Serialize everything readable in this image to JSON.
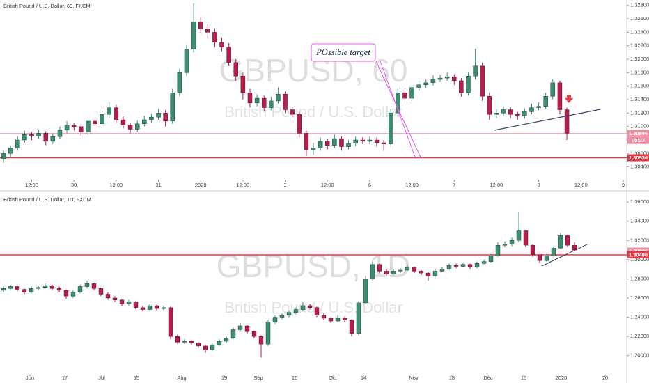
{
  "chart_data": [
    {
      "type": "candlestick",
      "title": "British Pound / U.S. Dollar, 60, FXCM",
      "watermark": "GBPUSD, 60",
      "watermark_subtitle": "British Pound / U.S. Dollar",
      "annotation": "POssible target",
      "countdown": "00:27",
      "up_color": "#3a8f73",
      "down_color": "#b71c4a",
      "grid": false,
      "xlim": [
        -0.5,
        88.5
      ],
      "xticks": [
        {
          "value": 4,
          "label": "12:00"
        },
        {
          "value": 10,
          "label": "30"
        },
        {
          "value": 16,
          "label": "12:00"
        },
        {
          "value": 22,
          "label": "31"
        },
        {
          "value": 28,
          "label": "2020"
        },
        {
          "value": 34,
          "label": "12:00"
        },
        {
          "value": 40,
          "label": "3"
        },
        {
          "value": 46,
          "label": "12:00"
        },
        {
          "value": 52,
          "label": "6"
        },
        {
          "value": 58,
          "label": "12:00"
        },
        {
          "value": 64,
          "label": "7"
        },
        {
          "value": 70,
          "label": "12:00"
        },
        {
          "value": 76,
          "label": "8"
        },
        {
          "value": 82,
          "label": "12:00"
        },
        {
          "value": 88,
          "label": "9"
        }
      ],
      "ylim": [
        1.3021,
        1.3288
      ],
      "yticks": [
        {
          "value": 1.328,
          "label": "1.32800"
        },
        {
          "value": 1.326,
          "label": "1.32600"
        },
        {
          "value": 1.324,
          "label": "1.32400"
        },
        {
          "value": 1.322,
          "label": "1.32200"
        },
        {
          "value": 1.32,
          "label": "1.32000"
        },
        {
          "value": 1.318,
          "label": "1.31800"
        },
        {
          "value": 1.316,
          "label": "1.31600"
        },
        {
          "value": 1.314,
          "label": "1.31400"
        },
        {
          "value": 1.312,
          "label": "1.31200"
        },
        {
          "value": 1.31,
          "label": "1.31000"
        },
        {
          "value": 1.308,
          "label": "1.30800"
        },
        {
          "value": 1.306,
          "label": "1.30600"
        },
        {
          "value": 1.304,
          "label": "1.30400"
        }
      ],
      "price_lines": [
        {
          "value": 1.30896,
          "label": "1.30896",
          "color": "#f08ca4"
        },
        {
          "value": 1.30536,
          "label": "1.30536",
          "color": "#e53945"
        }
      ],
      "candles": [
        [
          1.3052,
          1.3064,
          1.3046,
          1.306
        ],
        [
          1.306,
          1.3072,
          1.3055,
          1.3068
        ],
        [
          1.3068,
          1.3085,
          1.3064,
          1.308
        ],
        [
          1.308,
          1.3094,
          1.3076,
          1.3088
        ],
        [
          1.3088,
          1.3092,
          1.308,
          1.3086
        ],
        [
          1.3086,
          1.3095,
          1.3082,
          1.309
        ],
        [
          1.309,
          1.3093,
          1.3072,
          1.3078
        ],
        [
          1.3078,
          1.309,
          1.3074,
          1.3085
        ],
        [
          1.3085,
          1.31,
          1.3081,
          1.3095
        ],
        [
          1.3095,
          1.3108,
          1.309,
          1.3102
        ],
        [
          1.3102,
          1.3106,
          1.3094,
          1.31
        ],
        [
          1.31,
          1.3104,
          1.3086,
          1.3092
        ],
        [
          1.3092,
          1.3113,
          1.3088,
          1.3108
        ],
        [
          1.3108,
          1.3112,
          1.3098,
          1.3104
        ],
        [
          1.3104,
          1.3124,
          1.31,
          1.3118
        ],
        [
          1.3118,
          1.3136,
          1.3112,
          1.3128
        ],
        [
          1.3128,
          1.3132,
          1.3105,
          1.311
        ],
        [
          1.311,
          1.3115,
          1.3097,
          1.3102
        ],
        [
          1.3102,
          1.3106,
          1.309,
          1.3096
        ],
        [
          1.3096,
          1.3109,
          1.3092,
          1.3104
        ],
        [
          1.3104,
          1.3116,
          1.31,
          1.311
        ],
        [
          1.311,
          1.3119,
          1.3106,
          1.3114
        ],
        [
          1.3114,
          1.3126,
          1.311,
          1.312
        ],
        [
          1.312,
          1.3124,
          1.31,
          1.3108
        ],
        [
          1.3108,
          1.3156,
          1.3104,
          1.315
        ],
        [
          1.315,
          1.3186,
          1.3145,
          1.318
        ],
        [
          1.318,
          1.3222,
          1.3175,
          1.3215
        ],
        [
          1.3215,
          1.3283,
          1.321,
          1.3255
        ],
        [
          1.3255,
          1.3262,
          1.3238,
          1.3245
        ],
        [
          1.3245,
          1.3252,
          1.3232,
          1.324
        ],
        [
          1.324,
          1.3246,
          1.3218,
          1.3225
        ],
        [
          1.3225,
          1.3232,
          1.3212,
          1.3218
        ],
        [
          1.3218,
          1.3224,
          1.319,
          1.3195
        ],
        [
          1.3195,
          1.32,
          1.3168,
          1.3175
        ],
        [
          1.3175,
          1.318,
          1.314,
          1.315
        ],
        [
          1.315,
          1.3156,
          1.3128,
          1.3135
        ],
        [
          1.3135,
          1.3148,
          1.313,
          1.3142
        ],
        [
          1.3142,
          1.3146,
          1.3122,
          1.3128
        ],
        [
          1.3128,
          1.3144,
          1.3124,
          1.3138
        ],
        [
          1.3138,
          1.3158,
          1.3134,
          1.3148
        ],
        [
          1.3148,
          1.3152,
          1.312,
          1.3125
        ],
        [
          1.3125,
          1.313,
          1.3112,
          1.3118
        ],
        [
          1.3118,
          1.3122,
          1.3084,
          1.309
        ],
        [
          1.309,
          1.3094,
          1.3056,
          1.3065
        ],
        [
          1.3065,
          1.3076,
          1.3058,
          1.3068
        ],
        [
          1.3068,
          1.3084,
          1.3064,
          1.3078
        ],
        [
          1.3078,
          1.3081,
          1.3066,
          1.3072
        ],
        [
          1.3072,
          1.3088,
          1.3068,
          1.3082
        ],
        [
          1.3082,
          1.3085,
          1.3064,
          1.307
        ],
        [
          1.307,
          1.308,
          1.3066,
          1.3075
        ],
        [
          1.3075,
          1.3085,
          1.3071,
          1.308
        ],
        [
          1.308,
          1.3084,
          1.3074,
          1.3078
        ],
        [
          1.3078,
          1.3085,
          1.3074,
          1.308
        ],
        [
          1.308,
          1.3084,
          1.307,
          1.3076
        ],
        [
          1.3076,
          1.308,
          1.3064,
          1.3074
        ],
        [
          1.3074,
          1.3126,
          1.307,
          1.312
        ],
        [
          1.312,
          1.3158,
          1.3115,
          1.315
        ],
        [
          1.315,
          1.3156,
          1.3136,
          1.3142
        ],
        [
          1.3142,
          1.3164,
          1.3138,
          1.3158
        ],
        [
          1.3158,
          1.3168,
          1.3154,
          1.3162
        ],
        [
          1.3162,
          1.317,
          1.3157,
          1.3165
        ],
        [
          1.3165,
          1.3176,
          1.3161,
          1.317
        ],
        [
          1.317,
          1.3177,
          1.3166,
          1.3172
        ],
        [
          1.3172,
          1.318,
          1.3168,
          1.3174
        ],
        [
          1.3174,
          1.3178,
          1.3162,
          1.3168
        ],
        [
          1.3168,
          1.3172,
          1.3144,
          1.315
        ],
        [
          1.315,
          1.318,
          1.3146,
          1.3175
        ],
        [
          1.3175,
          1.3215,
          1.317,
          1.319
        ],
        [
          1.319,
          1.3195,
          1.3138,
          1.3145
        ],
        [
          1.3145,
          1.315,
          1.311,
          1.3118
        ],
        [
          1.3118,
          1.3126,
          1.3112,
          1.312
        ],
        [
          1.312,
          1.313,
          1.3115,
          1.3125
        ],
        [
          1.3125,
          1.3129,
          1.3112,
          1.3118
        ],
        [
          1.3118,
          1.3122,
          1.311,
          1.3116
        ],
        [
          1.3116,
          1.3127,
          1.3112,
          1.3122
        ],
        [
          1.3122,
          1.3134,
          1.3118,
          1.3128
        ],
        [
          1.3128,
          1.3136,
          1.3124,
          1.313
        ],
        [
          1.313,
          1.315,
          1.3126,
          1.3145
        ],
        [
          1.3145,
          1.317,
          1.314,
          1.3165
        ],
        [
          1.3165,
          1.3168,
          1.3118,
          1.3125
        ],
        [
          1.3125,
          1.3128,
          1.308,
          1.309
        ]
      ]
    },
    {
      "type": "candlestick",
      "title": "British Pound / U.S. Dollar, 1D, FXCM",
      "watermark": "GBPUSD, 1D",
      "watermark_subtitle": "British Pound / U.S. Dollar",
      "up_color": "#3a8f73",
      "down_color": "#b71c4a",
      "grid": false,
      "xlim": [
        -0.5,
        89.5
      ],
      "xticks": [
        {
          "value": 3.8,
          "label": "Jun"
        },
        {
          "value": 8.8,
          "label": "17"
        },
        {
          "value": 14.1,
          "label": "Jul"
        },
        {
          "value": 19.1,
          "label": "15"
        },
        {
          "value": 25.6,
          "label": "Aug"
        },
        {
          "value": 31.7,
          "label": "19"
        },
        {
          "value": 36.6,
          "label": "Sep"
        },
        {
          "value": 41.8,
          "label": "16"
        },
        {
          "value": 47.3,
          "label": "Oct"
        },
        {
          "value": 51.7,
          "label": "14"
        },
        {
          "value": 58.9,
          "label": "Nov"
        },
        {
          "value": 64.4,
          "label": "18"
        },
        {
          "value": 69.6,
          "label": "Dec"
        },
        {
          "value": 74.7,
          "label": "16"
        },
        {
          "value": 80.1,
          "label": "2020"
        },
        {
          "value": 86.4,
          "label": "20"
        }
      ],
      "ylim": [
        1.1802,
        1.3659
      ],
      "yticks": [
        {
          "value": 1.36,
          "label": "1.36000"
        },
        {
          "value": 1.34,
          "label": "1.34000"
        },
        {
          "value": 1.32,
          "label": "1.32000"
        },
        {
          "value": 1.3,
          "label": "1.30000"
        },
        {
          "value": 1.28,
          "label": "1.28000"
        },
        {
          "value": 1.26,
          "label": "1.26000"
        },
        {
          "value": 1.24,
          "label": "1.24000"
        },
        {
          "value": 1.22,
          "label": "1.22000"
        },
        {
          "value": 1.2,
          "label": "1.20000"
        }
      ],
      "price_lines": [
        {
          "value": 1.30896,
          "label": "1.30896",
          "color": "#f08ca4"
        },
        {
          "value": 1.30496,
          "label": "1.30496",
          "color": "#e53945"
        }
      ],
      "candles": [
        [
          1.268,
          1.272,
          1.266,
          1.27
        ],
        [
          1.27,
          1.274,
          1.268,
          1.272
        ],
        [
          1.272,
          1.273,
          1.267,
          1.269
        ],
        [
          1.269,
          1.27,
          1.264,
          1.266
        ],
        [
          1.266,
          1.272,
          1.265,
          1.27
        ],
        [
          1.27,
          1.273,
          1.268,
          1.271
        ],
        [
          1.271,
          1.275,
          1.27,
          1.273
        ],
        [
          1.273,
          1.274,
          1.268,
          1.27
        ],
        [
          1.27,
          1.272,
          1.266,
          1.268
        ],
        [
          1.268,
          1.269,
          1.259,
          1.262
        ],
        [
          1.262,
          1.268,
          1.26,
          1.266
        ],
        [
          1.266,
          1.274,
          1.265,
          1.272
        ],
        [
          1.272,
          1.278,
          1.27,
          1.275
        ],
        [
          1.275,
          1.276,
          1.268,
          1.27
        ],
        [
          1.27,
          1.271,
          1.262,
          1.264
        ],
        [
          1.264,
          1.266,
          1.258,
          1.26
        ],
        [
          1.26,
          1.262,
          1.256,
          1.258
        ],
        [
          1.258,
          1.259,
          1.252,
          1.254
        ],
        [
          1.254,
          1.258,
          1.252,
          1.256
        ],
        [
          1.256,
          1.257,
          1.248,
          1.25
        ],
        [
          1.25,
          1.252,
          1.246,
          1.248
        ],
        [
          1.248,
          1.254,
          1.247,
          1.252
        ],
        [
          1.252,
          1.253,
          1.247,
          1.249
        ],
        [
          1.249,
          1.252,
          1.247,
          1.25
        ],
        [
          1.25,
          1.251,
          1.217,
          1.22
        ],
        [
          1.22,
          1.222,
          1.212,
          1.214
        ],
        [
          1.214,
          1.217,
          1.212,
          1.215
        ],
        [
          1.215,
          1.216,
          1.211,
          1.213
        ],
        [
          1.213,
          1.214,
          1.208,
          1.21
        ],
        [
          1.21,
          1.211,
          1.203,
          1.206
        ],
        [
          1.206,
          1.213,
          1.205,
          1.211
        ],
        [
          1.211,
          1.217,
          1.21,
          1.215
        ],
        [
          1.215,
          1.22,
          1.213,
          1.218
        ],
        [
          1.218,
          1.229,
          1.217,
          1.227
        ],
        [
          1.227,
          1.234,
          1.225,
          1.231
        ],
        [
          1.231,
          1.232,
          1.223,
          1.225
        ],
        [
          1.225,
          1.226,
          1.218,
          1.22
        ],
        [
          1.22,
          1.221,
          1.198,
          1.212
        ],
        [
          1.212,
          1.237,
          1.21,
          1.235
        ],
        [
          1.235,
          1.242,
          1.233,
          1.24
        ],
        [
          1.24,
          1.244,
          1.238,
          1.242
        ],
        [
          1.242,
          1.247,
          1.24,
          1.245
        ],
        [
          1.245,
          1.25,
          1.243,
          1.248
        ],
        [
          1.248,
          1.256,
          1.246,
          1.252
        ],
        [
          1.252,
          1.254,
          1.248,
          1.25
        ],
        [
          1.25,
          1.251,
          1.24,
          1.242
        ],
        [
          1.242,
          1.244,
          1.237,
          1.239
        ],
        [
          1.239,
          1.24,
          1.234,
          1.236
        ],
        [
          1.236,
          1.242,
          1.235,
          1.239
        ],
        [
          1.239,
          1.241,
          1.235,
          1.237
        ],
        [
          1.237,
          1.238,
          1.22,
          1.223
        ],
        [
          1.223,
          1.257,
          1.221,
          1.255
        ],
        [
          1.255,
          1.283,
          1.254,
          1.28
        ],
        [
          1.28,
          1.299,
          1.278,
          1.295
        ],
        [
          1.295,
          1.296,
          1.286,
          1.288
        ],
        [
          1.288,
          1.29,
          1.283,
          1.285
        ],
        [
          1.285,
          1.29,
          1.284,
          1.288
        ],
        [
          1.288,
          1.291,
          1.286,
          1.289
        ],
        [
          1.289,
          1.295,
          1.288,
          1.292
        ],
        [
          1.292,
          1.293,
          1.286,
          1.288
        ],
        [
          1.288,
          1.289,
          1.284,
          1.286
        ],
        [
          1.286,
          1.287,
          1.278,
          1.283
        ],
        [
          1.283,
          1.29,
          1.282,
          1.288
        ],
        [
          1.288,
          1.292,
          1.287,
          1.29
        ],
        [
          1.29,
          1.296,
          1.289,
          1.294
        ],
        [
          1.294,
          1.296,
          1.291,
          1.293
        ],
        [
          1.293,
          1.297,
          1.292,
          1.295
        ],
        [
          1.295,
          1.296,
          1.29,
          1.292
        ],
        [
          1.292,
          1.298,
          1.291,
          1.296
        ],
        [
          1.296,
          1.3,
          1.295,
          1.298
        ],
        [
          1.298,
          1.306,
          1.297,
          1.304
        ],
        [
          1.304,
          1.318,
          1.303,
          1.315
        ],
        [
          1.315,
          1.319,
          1.313,
          1.316
        ],
        [
          1.316,
          1.323,
          1.314,
          1.32
        ],
        [
          1.32,
          1.35,
          1.318,
          1.33
        ],
        [
          1.33,
          1.331,
          1.313,
          1.315
        ],
        [
          1.315,
          1.316,
          1.303,
          1.305
        ],
        [
          1.305,
          1.306,
          1.296,
          1.299
        ],
        [
          1.299,
          1.306,
          1.298,
          1.304
        ],
        [
          1.304,
          1.314,
          1.303,
          1.312
        ],
        [
          1.312,
          1.328,
          1.311,
          1.325
        ],
        [
          1.325,
          1.326,
          1.313,
          1.315
        ],
        [
          1.315,
          1.318,
          1.309,
          1.31
        ]
      ]
    }
  ]
}
